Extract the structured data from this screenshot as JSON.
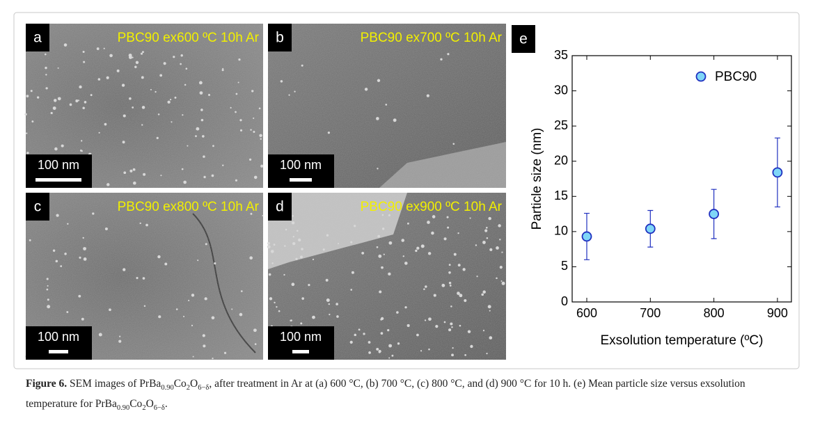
{
  "panels": [
    {
      "label": "a",
      "title": "PBC90 ex600 ºC 10h Ar",
      "scale": "100 nm"
    },
    {
      "label": "b",
      "title": "PBC90 ex700 ºC 10h Ar",
      "scale": "100 nm"
    },
    {
      "label": "c",
      "title": "PBC90 ex800 ºC 10h Ar",
      "scale": "100 nm"
    },
    {
      "label": "d",
      "title": "PBC90 ex900 ºC 10h Ar",
      "scale": "100 nm"
    }
  ],
  "chart_data": {
    "type": "scatter",
    "panel_label": "e",
    "x_label": "Exsolution temperature (ºC)",
    "y_label": "Particle size (nm)",
    "x": [
      600,
      700,
      800,
      900
    ],
    "series": [
      {
        "name": "PBC90",
        "color": "#7fd6f7",
        "edge_color": "#1f2fbf",
        "values": [
          9.3,
          10.4,
          12.5,
          18.4
        ],
        "errors": [
          3.3,
          2.6,
          3.5,
          4.9
        ]
      }
    ],
    "xlim": [
      577,
      922
    ],
    "xticks": [
      600,
      700,
      800,
      900
    ],
    "ylim": [
      0,
      35
    ],
    "yticks": [
      0,
      5,
      10,
      15,
      20,
      25,
      30,
      35
    ],
    "legend": "upper right"
  },
  "caption": {
    "label": "Figure 6.",
    "segments": [
      {
        "text": " SEM images of PrBa"
      },
      {
        "text": "0.90",
        "style": "sub"
      },
      {
        "text": "Co"
      },
      {
        "text": "2",
        "style": "sub"
      },
      {
        "text": "O"
      },
      {
        "text": "6−δ",
        "style": "sub"
      },
      {
        "text": ", after treatment in Ar at (a) 600 °C, (b) 700 °C, (c) 800 °C, and (d) 900 °C for 10 h. (e) Mean particle size versus exsolution temperature for PrBa"
      },
      {
        "text": "0.90",
        "style": "sub"
      },
      {
        "text": "Co"
      },
      {
        "text": "2",
        "style": "sub"
      },
      {
        "text": "O"
      },
      {
        "text": "6−δ",
        "style": "sub"
      },
      {
        "text": "."
      }
    ]
  }
}
